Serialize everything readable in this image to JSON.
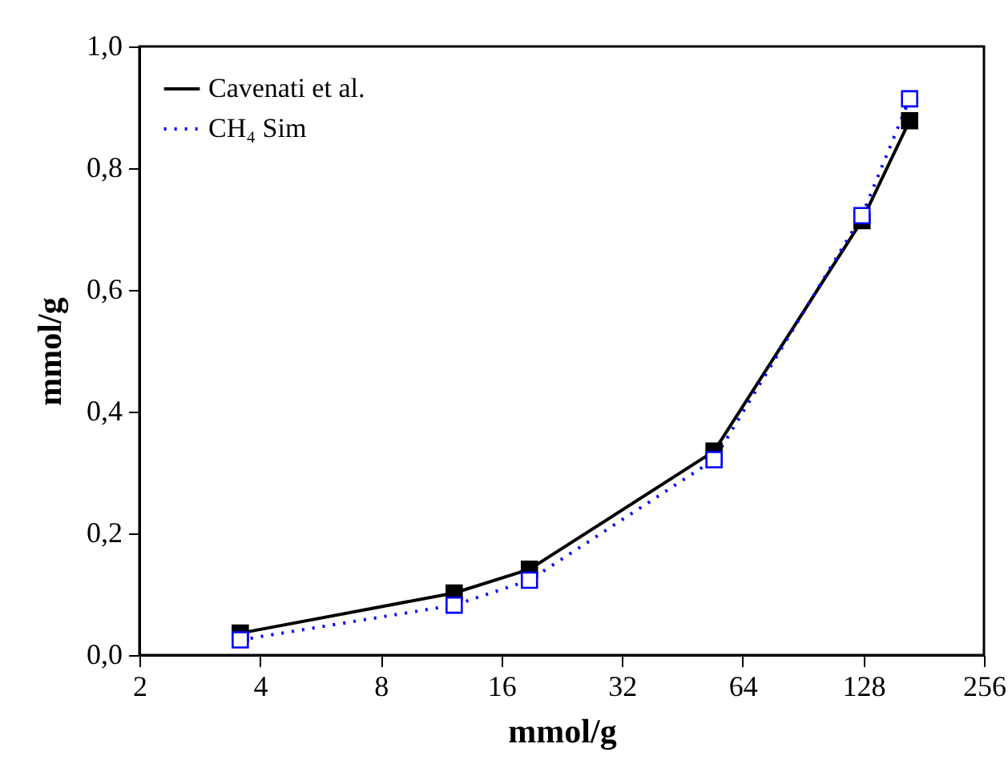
{
  "chart_data": {
    "type": "line",
    "xlabel": "mmol/g",
    "ylabel": "mmol/g",
    "log": "x",
    "xlim": [
      2,
      256
    ],
    "xticks": [
      2,
      4,
      8,
      16,
      32,
      64,
      128,
      256
    ],
    "ylim": [
      0,
      1
    ],
    "yticks": [
      {
        "value": 0,
        "label": "0,0"
      },
      {
        "value": 0.2,
        "label": "0,2"
      },
      {
        "value": 0.4,
        "label": "0,4"
      },
      {
        "value": 0.6,
        "label": "0,6"
      },
      {
        "value": 0.8,
        "label": "0,8"
      },
      {
        "value": 1,
        "label": "1,0"
      }
    ],
    "x": [
      3.57,
      12.2,
      18.8,
      54.3,
      127,
      167
    ],
    "marker": "square",
    "legend": "top left",
    "grid": false,
    "series": [
      {
        "name": "Cavenati et al.",
        "color": "#000000",
        "line_style": "solid",
        "values": [
          0.036,
          0.102,
          0.141,
          0.335,
          0.714,
          0.878
        ]
      },
      {
        "name": "CH₄ Sim",
        "color": "#0000ff",
        "line_style": "dotted",
        "values": [
          0.025,
          0.082,
          0.123,
          0.321,
          0.722,
          0.914
        ]
      }
    ]
  }
}
